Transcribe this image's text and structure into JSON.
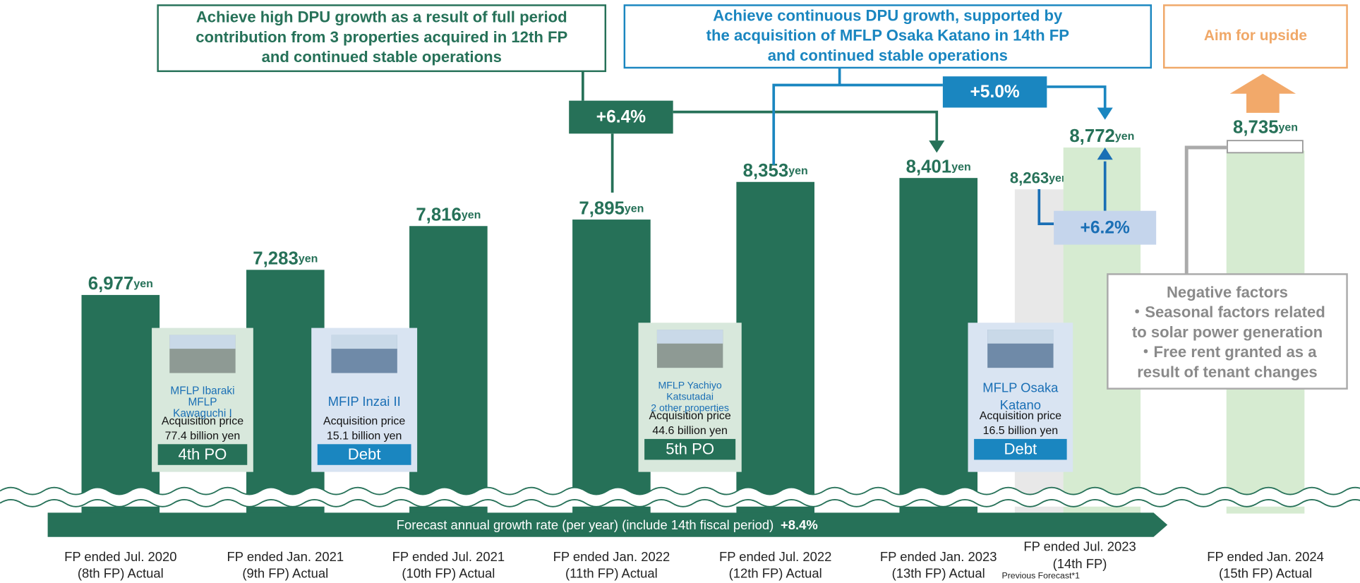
{
  "chart_data": {
    "type": "bar",
    "unit": "yen",
    "bars": [
      {
        "value": 6977,
        "value_label": "6,977",
        "color": "#267158",
        "x_label": "FP ended Jul. 2020",
        "x_note": "(8th FP) Actual"
      },
      {
        "value": 7283,
        "value_label": "7,283",
        "color": "#267158",
        "x_label": "FP ended Jan. 2021",
        "x_note": "(9th FP) Actual"
      },
      {
        "value": 7816,
        "value_label": "7,816",
        "color": "#267158",
        "x_label": "FP ended Jul. 2021",
        "x_note": "(10th FP) Actual"
      },
      {
        "value": 7895,
        "value_label": "7,895",
        "color": "#267158",
        "x_label": "FP ended Jan. 2022",
        "x_note": "(11th FP) Actual"
      },
      {
        "value": 8353,
        "value_label": "8,353",
        "color": "#267158",
        "x_label": "FP ended Jul. 2022",
        "x_note": "(12th FP) Actual"
      },
      {
        "value": 8401,
        "value_label": "8,401",
        "color": "#267158",
        "x_label": "FP ended Jan. 2023",
        "x_note": "(13th FP) Actual"
      },
      {
        "value": 8263,
        "value_label": "8,263",
        "color": "#e8e8e8",
        "x_label": null,
        "x_note": "Previous Forecast*1"
      },
      {
        "value": 8772,
        "value_label": "8,772",
        "color": "#d6ebd1",
        "x_label": "FP ended Jul. 2023",
        "x_note": "(14th FP)"
      },
      {
        "value": 8735,
        "value_label": "8,735",
        "color": "#d6ebd1",
        "x_label": "FP ended Jan. 2024",
        "x_note": "(15th FP) Actual"
      }
    ],
    "callouts": [
      {
        "lines": [
          "Achieve high DPU growth as a result of full period",
          "contribution from 3 properties acquired in 12th FP",
          "and continued stable operations"
        ],
        "color": "#267158"
      },
      {
        "lines": [
          "Achieve continuous DPU growth, supported by",
          "the acquisition of MFLP Osaka Katano in 14th FP",
          "and continued stable operations"
        ],
        "color": "#1a86c0"
      },
      {
        "lines": [
          "Aim for upside"
        ],
        "color": "#f0a868"
      }
    ],
    "changes": [
      "+6.4%",
      "+5.0%",
      "+6.2%"
    ],
    "acquisitions": [
      {
        "lines": [
          "MFLP Ibaraki",
          "MFLP",
          "Kawaguchi I"
        ],
        "price_label": "Acquisition price",
        "price": "77.4 billion yen",
        "funding": "4th PO"
      },
      {
        "lines": [
          "MFIP Inzai II"
        ],
        "price_label": "Acquisition price",
        "price": "15.1 billion yen",
        "funding": "Debt"
      },
      {
        "lines": [
          "MFLP Yachiyo",
          "Katsutadai",
          "2 other properties"
        ],
        "price_label": "Acquisition price",
        "price": "44.6 billion yen",
        "funding": "5th PO"
      },
      {
        "lines": [
          "MFLP Osaka",
          "Katano"
        ],
        "price_label": "Acquisition price",
        "price": "16.5 billion yen",
        "funding": "Debt"
      }
    ],
    "growth_rate": {
      "text": "Forecast annual growth rate (per year) (include 14th fiscal period)",
      "value_label": "+8.4%"
    },
    "negative_factors": {
      "title": "Negative factors",
      "lines": [
        "・Seasonal factors related",
        "to solar power generation",
        "・Free rent granted as a",
        "result of tenant changes"
      ]
    }
  }
}
